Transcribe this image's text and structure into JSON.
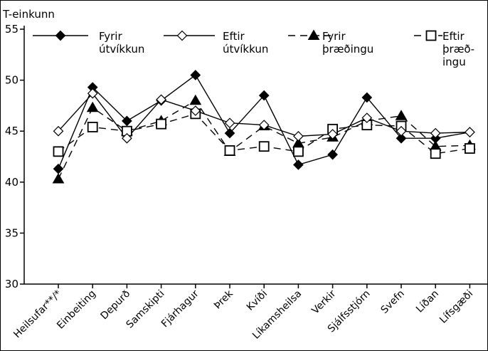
{
  "chart_data": {
    "type": "line",
    "ylabel": "T-einkunn",
    "ylim": [
      30,
      55
    ],
    "yticks": [
      30,
      35,
      40,
      45,
      50,
      55
    ],
    "grid": false,
    "legend_position": "top",
    "categories": [
      "Heilsufar**/*",
      "Einbeiting",
      "Depurð",
      "Samskipti",
      "Fjárhagur",
      "Þrek",
      "Kvíði",
      "Líkamsheilsa",
      "Verkir",
      "Sjálfsstjórn",
      "Svefn",
      "Líðan",
      "Lífsgæði"
    ],
    "series": [
      {
        "name": "Fyrir útvíkkun",
        "name_lines": [
          "Fyrir",
          "útvíkkun"
        ],
        "marker": "diamond-filled",
        "line": "solid",
        "values": [
          41.3,
          49.3,
          46.0,
          48.0,
          50.5,
          44.8,
          48.5,
          41.7,
          42.7,
          48.3,
          44.3,
          44.3,
          44.9
        ]
      },
      {
        "name": "Eftir útvíkkun",
        "name_lines": [
          "Eftir",
          "útvíkkun"
        ],
        "marker": "diamond-open",
        "line": "solid",
        "values": [
          45.0,
          48.7,
          44.3,
          48.1,
          47.0,
          45.8,
          45.6,
          44.5,
          44.7,
          46.3,
          45.0,
          44.8,
          44.9
        ]
      },
      {
        "name": "Fyrir þræðingu",
        "name_lines": [
          "Fyrir",
          "þræðingu"
        ],
        "marker": "triangle-filled",
        "line": "dashed",
        "values": [
          40.3,
          47.3,
          45.0,
          46.0,
          48.0,
          43.0,
          45.5,
          43.8,
          44.4,
          46.0,
          46.5,
          43.5,
          43.6
        ]
      },
      {
        "name": "Eftir þræðingu",
        "name_lines": [
          "Eftir",
          "þræð-",
          "ingu"
        ],
        "marker": "square-open",
        "line": "dashed",
        "values": [
          43.0,
          45.4,
          45.0,
          45.7,
          46.7,
          43.1,
          43.5,
          43.0,
          45.2,
          45.6,
          45.5,
          42.8,
          43.3
        ]
      }
    ]
  }
}
